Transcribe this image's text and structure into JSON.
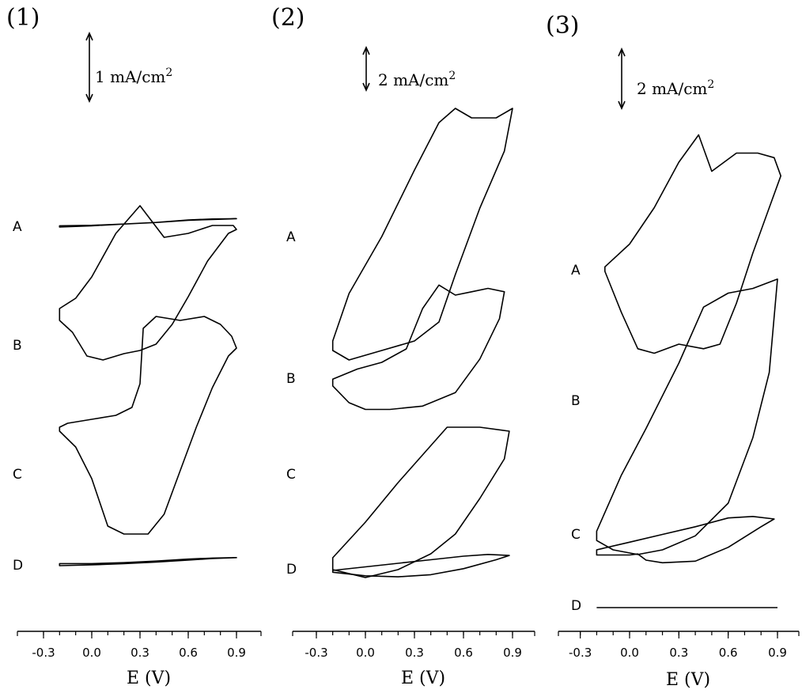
{
  "chart_data": [
    {
      "type": "line",
      "panel_label": "(1)",
      "scale_bar": "1 mA/cm",
      "scale_bar_sup": "2",
      "xlabel": "E (V)",
      "x_ticks": [
        "-0.3",
        "0.0",
        "0.3",
        "0.6",
        "0.9"
      ],
      "xlim": [
        -0.45,
        1.0
      ],
      "series": [
        {
          "curve_label": "A",
          "x": [
            -0.2,
            0.0,
            0.2,
            0.4,
            0.6,
            0.75,
            0.9,
            0.75,
            0.6,
            0.4,
            0.2,
            0.0,
            -0.2
          ],
          "y": [
            0.0,
            0.05,
            0.12,
            0.18,
            0.27,
            0.3,
            0.33,
            0.32,
            0.28,
            0.18,
            0.12,
            0.07,
            0.05
          ]
        },
        {
          "curve_label": "B",
          "x": [
            -0.2,
            -0.12,
            -0.03,
            0.07,
            0.2,
            0.3,
            0.4,
            0.5,
            0.6,
            0.72,
            0.85,
            0.9,
            0.88,
            0.75,
            0.6,
            0.45,
            0.3,
            0.15,
            0.0,
            -0.1,
            -0.2
          ],
          "y": [
            -0.2,
            -0.35,
            -0.65,
            -0.7,
            -0.62,
            -0.58,
            -0.5,
            -0.25,
            0.1,
            0.55,
            0.9,
            0.95,
            1.0,
            1.0,
            0.9,
            0.85,
            1.25,
            0.9,
            0.35,
            0.08,
            -0.05
          ]
        },
        {
          "curve_label": "C",
          "x": [
            -0.2,
            -0.1,
            0.0,
            0.1,
            0.2,
            0.35,
            0.45,
            0.55,
            0.65,
            0.75,
            0.85,
            0.9,
            0.87,
            0.8,
            0.7,
            0.55,
            0.4,
            0.32,
            0.3,
            0.25,
            0.15,
            0.0,
            -0.15,
            -0.2
          ],
          "y": [
            -0.05,
            -0.25,
            -0.65,
            -1.25,
            -1.35,
            -1.35,
            -1.1,
            -0.55,
            0.0,
            0.5,
            0.9,
            1.0,
            1.15,
            1.3,
            1.4,
            1.35,
            1.4,
            1.25,
            0.55,
            0.25,
            0.15,
            0.1,
            0.05,
            0.0
          ]
        },
        {
          "curve_label": "D",
          "x": [
            -0.2,
            0.0,
            0.2,
            0.4,
            0.6,
            0.75,
            0.9,
            0.75,
            0.6,
            0.4,
            0.2,
            0.0,
            -0.2
          ],
          "y": [
            0.0,
            0.03,
            0.08,
            0.14,
            0.22,
            0.28,
            0.32,
            0.3,
            0.26,
            0.18,
            0.12,
            0.08,
            0.08
          ]
        }
      ]
    },
    {
      "type": "line",
      "panel_label": "(2)",
      "scale_bar": "2 mA/cm",
      "scale_bar_sup": "2",
      "xlabel": "E (V)",
      "x_ticks": [
        "-0.3",
        "0.0",
        "0.3",
        "0.6",
        "0.9"
      ],
      "xlim": [
        -0.45,
        1.0
      ],
      "series": [
        {
          "curve_label": "A",
          "x": [
            -0.2,
            -0.1,
            0.1,
            0.3,
            0.45,
            0.55,
            0.7,
            0.85,
            0.9,
            0.8,
            0.65,
            0.55,
            0.45,
            0.3,
            0.1,
            -0.1,
            -0.2
          ],
          "y": [
            -1.2,
            -1.3,
            -1.2,
            -1.1,
            -0.9,
            -0.4,
            0.3,
            0.9,
            1.35,
            1.25,
            1.25,
            1.35,
            1.2,
            0.7,
            0.0,
            -0.6,
            -1.1
          ]
        },
        {
          "curve_label": "B",
          "x": [
            -0.2,
            -0.1,
            0.0,
            0.15,
            0.35,
            0.55,
            0.7,
            0.82,
            0.85,
            0.75,
            0.65,
            0.55,
            0.45,
            0.35,
            0.25,
            0.1,
            -0.05,
            -0.2
          ],
          "y": [
            -0.35,
            -0.6,
            -0.7,
            -0.7,
            -0.65,
            -0.45,
            0.05,
            0.65,
            1.05,
            1.1,
            1.05,
            1.0,
            1.15,
            0.8,
            0.2,
            0.0,
            -0.1,
            -0.25
          ]
        },
        {
          "curve_label": "C",
          "x": [
            -0.2,
            0.0,
            0.2,
            0.4,
            0.55,
            0.7,
            0.85,
            0.88,
            0.7,
            0.5,
            0.35,
            0.2,
            0.0,
            -0.2
          ],
          "y": [
            -0.95,
            -1.05,
            -0.95,
            -0.75,
            -0.5,
            -0.05,
            0.45,
            0.8,
            0.85,
            0.85,
            0.5,
            0.15,
            -0.35,
            -0.8
          ]
        },
        {
          "curve_label": "D",
          "x": [
            -0.2,
            0.0,
            0.2,
            0.4,
            0.6,
            0.8,
            0.88,
            0.75,
            0.6,
            0.4,
            0.2,
            0.0,
            -0.2
          ],
          "y": [
            -0.05,
            -0.15,
            -0.18,
            -0.12,
            0.05,
            0.3,
            0.42,
            0.45,
            0.4,
            0.3,
            0.2,
            0.1,
            0.0
          ]
        }
      ]
    },
    {
      "type": "line",
      "panel_label": "(3)",
      "scale_bar": "2 mA/cm",
      "scale_bar_sup": "2",
      "xlabel": "E (V)",
      "x_ticks": [
        "-0.3",
        "0.0",
        "0.3",
        "0.6",
        "0.9"
      ],
      "xlim": [
        -0.45,
        1.0
      ],
      "series": [
        {
          "curve_label": "A",
          "x": [
            -0.15,
            -0.05,
            0.05,
            0.15,
            0.3,
            0.45,
            0.55,
            0.65,
            0.75,
            0.85,
            0.92,
            0.88,
            0.78,
            0.65,
            0.5,
            0.42,
            0.3,
            0.15,
            0.0,
            -0.15
          ],
          "y": [
            0.0,
            -0.45,
            -0.85,
            -0.9,
            -0.8,
            -0.85,
            -0.8,
            -0.35,
            0.2,
            0.7,
            1.05,
            1.25,
            1.3,
            1.3,
            1.1,
            1.5,
            1.2,
            0.7,
            0.3,
            0.05
          ]
        },
        {
          "curve_label": "B",
          "x": [
            -0.2,
            -0.1,
            0.05,
            0.2,
            0.4,
            0.6,
            0.75,
            0.85,
            0.9,
            0.75,
            0.6,
            0.45,
            0.3,
            0.1,
            -0.05,
            -0.2
          ],
          "y": [
            -1.4,
            -1.5,
            -1.55,
            -1.5,
            -1.35,
            -1.0,
            -0.3,
            0.4,
            1.4,
            1.3,
            1.25,
            1.1,
            0.5,
            -0.2,
            -0.7,
            -1.3
          ]
        },
        {
          "curve_label": "C",
          "x": [
            -0.2,
            0.0,
            0.05,
            0.1,
            0.2,
            0.4,
            0.6,
            0.8,
            0.88,
            0.75,
            0.6,
            0.4,
            0.2,
            0.0,
            -0.2
          ],
          "y": [
            -0.3,
            -0.3,
            -0.28,
            -0.4,
            -0.45,
            -0.42,
            -0.15,
            0.25,
            0.4,
            0.45,
            0.42,
            0.25,
            0.1,
            -0.05,
            -0.2
          ]
        },
        {
          "curve_label": "D",
          "x": [
            -0.2,
            0.9
          ],
          "y": [
            0.0,
            0.0
          ]
        }
      ]
    }
  ]
}
